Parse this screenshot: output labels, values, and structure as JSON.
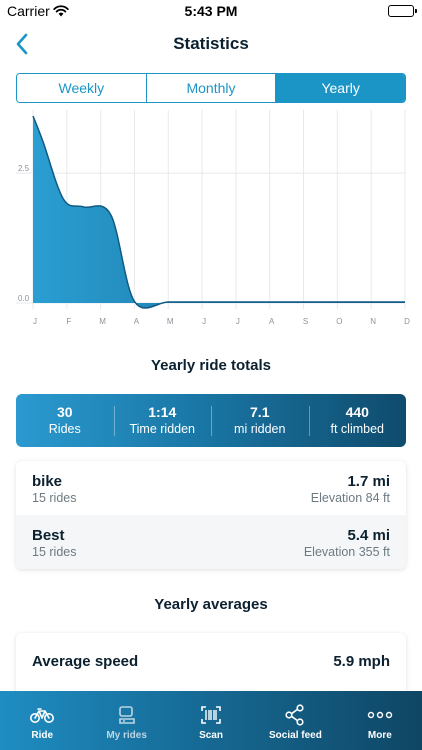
{
  "status": {
    "carrier": "Carrier",
    "time": "5:43 PM"
  },
  "nav": {
    "title": "Statistics"
  },
  "segments": {
    "weekly": "Weekly",
    "monthly": "Monthly",
    "yearly": "Yearly",
    "active": "yearly"
  },
  "chart_data": {
    "type": "area",
    "categories": [
      "J",
      "F",
      "M",
      "A",
      "M",
      "J",
      "J",
      "A",
      "S",
      "O",
      "N",
      "D"
    ],
    "x": [
      0,
      0.3,
      0.9,
      1.5,
      2.3,
      3,
      4,
      5,
      6,
      7,
      8,
      9,
      10,
      11
    ],
    "y": [
      3.6,
      3.1,
      2.0,
      1.85,
      1.7,
      0.03,
      0.02,
      0.02,
      0.02,
      0.02,
      0.02,
      0.02,
      0.02,
      0.02
    ],
    "y_ticks": [
      "0.0",
      "2.5"
    ],
    "ylim": [
      0,
      3.6
    ],
    "grid": true,
    "color": "#1b86ba"
  },
  "totals_title": "Yearly ride totals",
  "totals": [
    {
      "value": "30",
      "label": "Rides"
    },
    {
      "value": "1:14",
      "label": "Time ridden"
    },
    {
      "value": "7.1",
      "label": "mi ridden"
    },
    {
      "value": "440",
      "label": "ft climbed"
    }
  ],
  "bikes": [
    {
      "name": "bike",
      "rides": "15 rides",
      "distance": "1.7 mi",
      "elevation": "Elevation 84 ft"
    },
    {
      "name": "Best",
      "rides": "15 rides",
      "distance": "5.4 mi",
      "elevation": "Elevation 355 ft"
    }
  ],
  "averages_title": "Yearly averages",
  "averages": [
    {
      "label": "Average speed",
      "value": "5.9 mph"
    }
  ],
  "tabbar": {
    "ride": "Ride",
    "my_rides": "My rides",
    "scan": "Scan",
    "social_feed": "Social feed",
    "more": "More"
  },
  "colors": {
    "accent": "#1b95c6",
    "dark": "#0f4664"
  }
}
